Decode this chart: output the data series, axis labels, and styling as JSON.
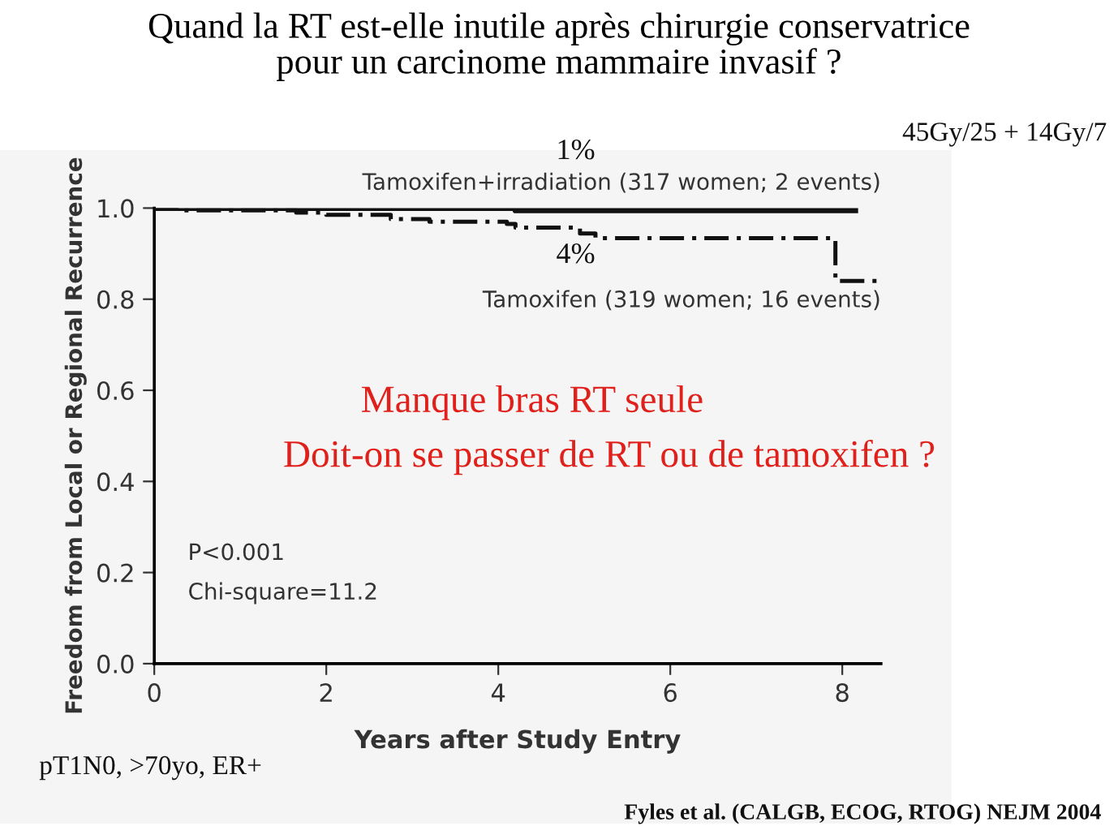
{
  "chart_data": {
    "type": "step",
    "title": "Quand la RT est-elle inutile après chirurgie conservatrice\npour un carcinome mammaire invasif ?",
    "xlabel": "Years after Study Entry",
    "ylabel": "Freedom from Local or Regional Recurrence",
    "series": [
      {
        "name": "Tamoxifen+irradiation (317 women; 2 events)",
        "color": "#111111",
        "line_style": "solid",
        "x": [
          0,
          4.2,
          8.15
        ],
        "values": [
          1.0,
          0.995,
          0.995
        ]
      },
      {
        "name": "Tamoxifen (319 women; 16 events)",
        "color": "#111111",
        "line_style": "dashed",
        "x": [
          0,
          0.3,
          1.65,
          2.0,
          2.75,
          3.2,
          4.1,
          4.2,
          4.95,
          5.13,
          7.92,
          8.4
        ],
        "values": [
          1.0,
          0.995,
          0.99,
          0.985,
          0.976,
          0.97,
          0.965,
          0.957,
          0.944,
          0.934,
          0.84,
          0.84
        ]
      }
    ],
    "xlim": [
      0,
      8.45
    ],
    "xticks": [
      0,
      2,
      4,
      6,
      8
    ],
    "ylim": [
      0,
      1.0
    ],
    "yticks": [
      {
        "value": 0,
        "label": "0.0"
      },
      0.2,
      0.4,
      0.6,
      0.8,
      {
        "value": 1.0,
        "label": "1.0"
      }
    ],
    "grid": false,
    "legend": false,
    "marker": "none",
    "annotations": [
      {
        "text": "1%",
        "x": 4.9,
        "y": 0.995
      },
      {
        "text": "4%",
        "x": 4.9,
        "y": 0.944
      },
      "Manque bras RT seule",
      "Doit-on se passer de RT ou de tamoxifen ?",
      "P<0.001",
      "Chi-square=11.2",
      "45Gy/25 + 14Gy/7",
      "pT1N0, >70yo, ER+",
      "Fyles et al. (CALGB, ECOG, RTOG) NEJM 2004"
    ]
  }
}
